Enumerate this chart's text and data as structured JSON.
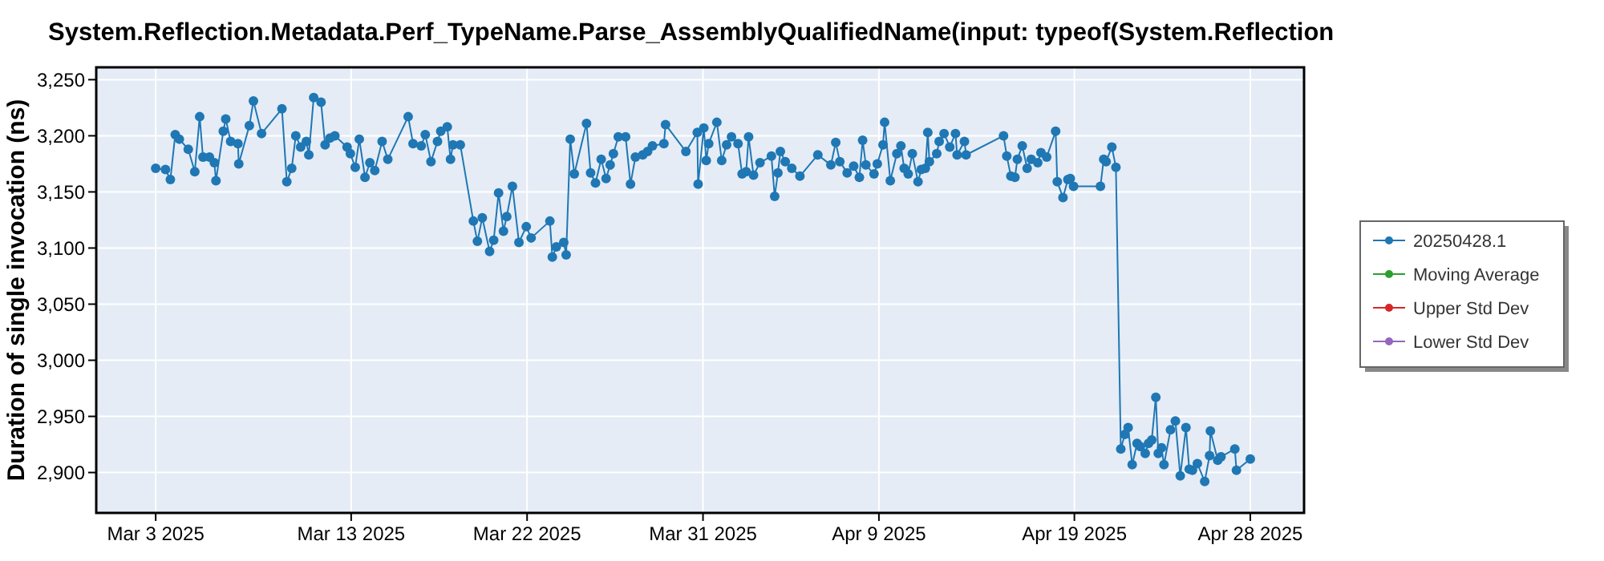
{
  "chart_data": {
    "type": "line",
    "title": "System.Reflection.Metadata.Perf_TypeName.Parse_AssemblyQualifiedName(input: typeof(System.Reflection",
    "ylabel": "Duration of single invocation (ns)",
    "xlim": [
      "2025-02-27T23:00",
      "2025-04-30T18:00"
    ],
    "xticks": [
      {
        "value": "2025-03-03",
        "label": "Mar 3 2025"
      },
      {
        "value": "2025-03-13",
        "label": "Mar 13 2025"
      },
      {
        "value": "2025-03-22",
        "label": "Mar 22 2025"
      },
      {
        "value": "2025-03-31",
        "label": "Mar 31 2025"
      },
      {
        "value": "2025-04-09",
        "label": "Apr 9 2025"
      },
      {
        "value": "2025-04-19",
        "label": "Apr 19 2025"
      },
      {
        "value": "2025-04-28",
        "label": "Apr 28 2025"
      }
    ],
    "ylim": [
      2864,
      3261
    ],
    "yticks": [
      {
        "value": 2900,
        "label": "2,900"
      },
      {
        "value": 2950,
        "label": "2,950"
      },
      {
        "value": 3000,
        "label": "3,000"
      },
      {
        "value": 3050,
        "label": "3,050"
      },
      {
        "value": 3100,
        "label": "3,100"
      },
      {
        "value": 3150,
        "label": "3,150"
      },
      {
        "value": 3200,
        "label": "3,200"
      },
      {
        "value": 3250,
        "label": "3,250"
      }
    ],
    "grid": true,
    "legend": "right",
    "marker": "circle",
    "line_style": "solid",
    "series": [
      {
        "name": "20250428.1",
        "color": "#1f77b4",
        "x": [
          "2025-03-03T00:00",
          "2025-03-03T12:00",
          "2025-03-03T18:00",
          "2025-03-04T00:00",
          "2025-03-04T05:00",
          "2025-03-04T16:00",
          "2025-03-05T00:00",
          "2025-03-05T06:00",
          "2025-03-05T10:00",
          "2025-03-05T18:00",
          "2025-03-06T00:00",
          "2025-03-06T02:00",
          "2025-03-06T11:00",
          "2025-03-06T14:00",
          "2025-03-06T20:00",
          "2025-03-07T05:00",
          "2025-03-07T06:00",
          "2025-03-07T19:00",
          "2025-03-08T00:00",
          "2025-03-08T10:00",
          "2025-03-09T11:00",
          "2025-03-09T17:00",
          "2025-03-09T23:00",
          "2025-03-10T04:00",
          "2025-03-10T10:00",
          "2025-03-10T17:00",
          "2025-03-10T20:00",
          "2025-03-11T02:00",
          "2025-03-11T11:00",
          "2025-03-11T16:00",
          "2025-03-11T22:00",
          "2025-03-12T04:00",
          "2025-03-12T19:00",
          "2025-03-12T23:00",
          "2025-03-13T05:00",
          "2025-03-13T10:00",
          "2025-03-13T17:00",
          "2025-03-13T23:00",
          "2025-03-14T05:00",
          "2025-03-14T14:00",
          "2025-03-14T21:00",
          "2025-03-15T22:00",
          "2025-03-16T04:00",
          "2025-03-16T14:00",
          "2025-03-16T19:00",
          "2025-03-17T02:00",
          "2025-03-17T10:00",
          "2025-03-17T14:00",
          "2025-03-17T22:00",
          "2025-03-18T02:00",
          "2025-03-18T05:00",
          "2025-03-18T14:00",
          "2025-03-19T06:00",
          "2025-03-19T11:00",
          "2025-03-19T17:00",
          "2025-03-20T02:00",
          "2025-03-20T07:00",
          "2025-03-20T13:00",
          "2025-03-20T19:00",
          "2025-03-20T23:00",
          "2025-03-21T06:00",
          "2025-03-21T14:00",
          "2025-03-21T23:00",
          "2025-03-22T05:00",
          "2025-03-23T04:00",
          "2025-03-23T07:00",
          "2025-03-23T12:00",
          "2025-03-23T21:00",
          "2025-03-24T00:00",
          "2025-03-24T05:00",
          "2025-03-24T10:00",
          "2025-03-25T01:00",
          "2025-03-25T06:00",
          "2025-03-25T12:00",
          "2025-03-25T19:00",
          "2025-03-26T01:00",
          "2025-03-26T06:00",
          "2025-03-26T10:00",
          "2025-03-26T16:00",
          "2025-03-27T01:00",
          "2025-03-27T07:00",
          "2025-03-27T13:00",
          "2025-03-27T22:00",
          "2025-03-28T04:00",
          "2025-03-28T10:00",
          "2025-03-29T00:00",
          "2025-03-29T02:00",
          "2025-03-30T03:00",
          "2025-03-30T17:00",
          "2025-03-30T18:00",
          "2025-03-31T01:00",
          "2025-03-31T04:00",
          "2025-03-31T07:00",
          "2025-03-31T17:00",
          "2025-03-31T23:00",
          "2025-04-01T05:00",
          "2025-04-01T11:00",
          "2025-04-01T19:00",
          "2025-04-02T00:00",
          "2025-04-02T05:00",
          "2025-04-02T08:00",
          "2025-04-02T14:00",
          "2025-04-02T22:00",
          "2025-04-03T12:00",
          "2025-04-03T16:00",
          "2025-04-03T20:00",
          "2025-04-03T23:00",
          "2025-04-04T05:00",
          "2025-04-04T13:00",
          "2025-04-04T23:00",
          "2025-04-05T21:00",
          "2025-04-06T13:00",
          "2025-04-06T19:00",
          "2025-04-07T00:00",
          "2025-04-07T09:00",
          "2025-04-07T17:00",
          "2025-04-08T00:00",
          "2025-04-08T04:00",
          "2025-04-08T08:00",
          "2025-04-08T18:00",
          "2025-04-08T22:00",
          "2025-04-09T05:00",
          "2025-04-09T07:00",
          "2025-04-09T14:00",
          "2025-04-09T22:00",
          "2025-04-10T03:00",
          "2025-04-10T07:00",
          "2025-04-10T12:00",
          "2025-04-10T17:00",
          "2025-04-11T00:00",
          "2025-04-11T04:00",
          "2025-04-11T09:00",
          "2025-04-11T12:00",
          "2025-04-11T14:00",
          "2025-04-11T23:00",
          "2025-04-12T02:00",
          "2025-04-12T08:00",
          "2025-04-12T15:00",
          "2025-04-12T22:00",
          "2025-04-13T00:00",
          "2025-04-13T09:00",
          "2025-04-13T11:00",
          "2025-04-15T09:00",
          "2025-04-15T13:00",
          "2025-04-15T18:00",
          "2025-04-15T23:00",
          "2025-04-16T02:00",
          "2025-04-16T08:00",
          "2025-04-16T14:00",
          "2025-04-16T19:00",
          "2025-04-17T03:00",
          "2025-04-17T07:00",
          "2025-04-17T14:00",
          "2025-04-18T01:00",
          "2025-04-18T03:00",
          "2025-04-18T10:00",
          "2025-04-18T16:00",
          "2025-04-18T19:00",
          "2025-04-18T23:00",
          "2025-04-20T08:00",
          "2025-04-20T12:00",
          "2025-04-20T15:00",
          "2025-04-20T22:00",
          "2025-04-21T03:00",
          "2025-04-21T09:00",
          "2025-04-21T14:00",
          "2025-04-21T18:00",
          "2025-04-21T23:00",
          "2025-04-22T05:00",
          "2025-04-22T09:00",
          "2025-04-22T15:00",
          "2025-04-22T19:00",
          "2025-04-22T23:00",
          "2025-04-23T04:00",
          "2025-04-23T07:00",
          "2025-04-23T11:00",
          "2025-04-23T14:00",
          "2025-04-23T22:00",
          "2025-04-24T04:00",
          "2025-04-24T10:00",
          "2025-04-24T17:00",
          "2025-04-24T21:00",
          "2025-04-25T01:00",
          "2025-04-25T07:00",
          "2025-04-25T16:00",
          "2025-04-25T22:00",
          "2025-04-25T23:00",
          "2025-04-26T08:00",
          "2025-04-26T12:00",
          "2025-04-27T05:00",
          "2025-04-27T07:00",
          "2025-04-28T00:00"
        ],
        "values": [
          3171,
          3170,
          3161,
          3201,
          3197,
          3188,
          3168,
          3217,
          3181,
          3181,
          3176,
          3160,
          3204,
          3215,
          3195,
          3193,
          3175,
          3209,
          3231,
          3202,
          3224,
          3159,
          3171,
          3200,
          3190,
          3195,
          3183,
          3234,
          3230,
          3192,
          3198,
          3200,
          3190,
          3184,
          3172,
          3197,
          3163,
          3176,
          3169,
          3195,
          3179,
          3217,
          3193,
          3191,
          3201,
          3177,
          3195,
          3204,
          3208,
          3179,
          3192,
          3192,
          3124,
          3106,
          3127,
          3097,
          3107,
          3149,
          3115,
          3128,
          3155,
          3105,
          3119,
          3109,
          3124,
          3092,
          3101,
          3105,
          3094,
          3197,
          3166,
          3211,
          3167,
          3158,
          3179,
          3162,
          3174,
          3184,
          3199,
          3199,
          3157,
          3181,
          3183,
          3186,
          3191,
          3193,
          3210,
          3186,
          3203,
          3157,
          3207,
          3178,
          3193,
          3212,
          3178,
          3192,
          3199,
          3193,
          3166,
          3168,
          3199,
          3165,
          3176,
          3182,
          3146,
          3167,
          3186,
          3177,
          3171,
          3164,
          3183,
          3174,
          3194,
          3177,
          3167,
          3173,
          3163,
          3196,
          3174,
          3166,
          3175,
          3192,
          3212,
          3160,
          3184,
          3191,
          3171,
          3166,
          3184,
          3159,
          3170,
          3171,
          3203,
          3177,
          3184,
          3195,
          3202,
          3190,
          3202,
          3183,
          3195,
          3183,
          3200,
          3182,
          3164,
          3163,
          3179,
          3191,
          3171,
          3179,
          3176,
          3185,
          3181,
          3204,
          3159,
          3145,
          3161,
          3162,
          3155,
          3155,
          3179,
          3177,
          3190,
          3172,
          2921,
          2934,
          2940,
          2907,
          2926,
          2923,
          2917,
          2926,
          2929,
          2967,
          2917,
          2922,
          2907,
          2938,
          2946,
          2897,
          2940,
          2903,
          2902,
          2908,
          2892,
          2915,
          2937,
          2911,
          2914,
          2921,
          2902,
          2912
        ]
      },
      {
        "name": "Moving Average",
        "color": "#2ca02c"
      },
      {
        "name": "Upper Std Dev",
        "color": "#d62728"
      },
      {
        "name": "Lower Std Dev",
        "color": "#9467bd"
      }
    ]
  }
}
